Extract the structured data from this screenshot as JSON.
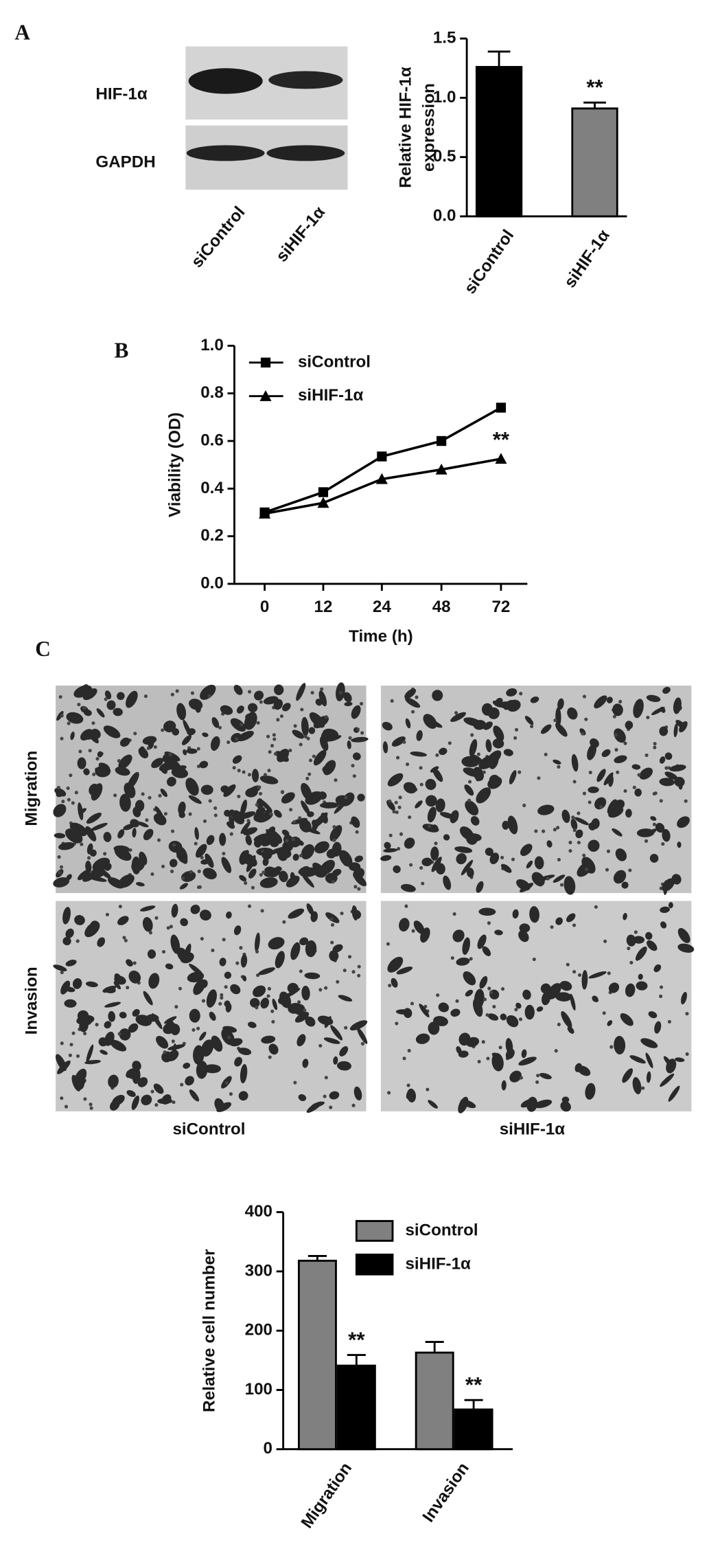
{
  "panel_labels": [
    "A",
    "B",
    "C"
  ],
  "blot": {
    "rows": [
      "HIF-1α",
      "GAPDH"
    ],
    "lanes": [
      "siControl",
      "siHIF-1α"
    ]
  },
  "micrographs": {
    "rows": [
      "Migration",
      "Invasion"
    ],
    "columns": [
      "siControl",
      "siHIF-1α"
    ]
  },
  "chart_data": [
    {
      "type": "bar",
      "y_label": [
        "Relative HIF-1α",
        "expression"
      ],
      "categories": [
        "siControl",
        "siHIF-1α"
      ],
      "values": [
        1.26,
        0.91
      ],
      "errors": [
        0.13,
        0.05
      ],
      "colors": [
        "#000000",
        "#808080"
      ],
      "significance": [
        null,
        "**"
      ],
      "ylim": [
        0,
        1.5
      ],
      "yticks": [
        {
          "value": 0,
          "label": "0.0"
        },
        {
          "value": 0.5,
          "label": "0.5"
        },
        {
          "value": 1,
          "label": "1.0"
        },
        {
          "value": 1.5,
          "label": "1.5"
        }
      ]
    },
    {
      "type": "line",
      "x_label": "Time (h)",
      "y_label": "Viability (OD)",
      "categories": [
        "0",
        "12",
        "24",
        "48",
        "72"
      ],
      "series": [
        {
          "name": "siControl",
          "color": "#000000",
          "marker": "square",
          "values": [
            0.3,
            0.385,
            0.535,
            0.6,
            0.74
          ]
        },
        {
          "name": "siHIF-1α",
          "color": "#000000",
          "marker": "triangle",
          "values": [
            0.295,
            0.34,
            0.44,
            0.48,
            0.525
          ],
          "significance": [
            null,
            null,
            null,
            null,
            "**"
          ]
        }
      ],
      "ylim": [
        0,
        1.0
      ],
      "yticks": [
        {
          "value": 0,
          "label": "0.0"
        },
        {
          "value": 0.2,
          "label": "0.2"
        },
        {
          "value": 0.4,
          "label": "0.4"
        },
        {
          "value": 0.6,
          "label": "0.6"
        },
        {
          "value": 0.8,
          "label": "0.8"
        },
        {
          "value": 1,
          "label": "1.0"
        }
      ]
    },
    {
      "type": "grouped-bar",
      "y_label": "Relative cell number",
      "categories": [
        "Migration",
        "Invasion"
      ],
      "series": [
        {
          "name": "siControl",
          "color": "#808080",
          "values": [
            318,
            163
          ],
          "errors": [
            8,
            18
          ]
        },
        {
          "name": "siHIF-1α",
          "color": "#000000",
          "values": [
            141,
            67
          ],
          "errors": [
            18,
            16
          ],
          "significance": [
            "**",
            "**"
          ]
        }
      ],
      "ylim": [
        0,
        400
      ],
      "yticks": [
        0,
        100,
        200,
        300,
        400
      ]
    }
  ]
}
